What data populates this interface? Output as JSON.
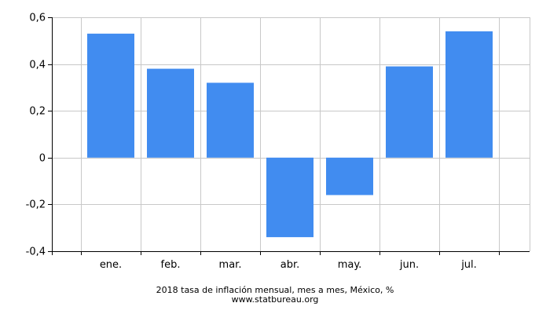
{
  "chart_data": {
    "type": "bar",
    "categories": [
      "ene.",
      "feb.",
      "mar.",
      "abr.",
      "may.",
      "jun.",
      "jul."
    ],
    "values": [
      0.53,
      0.38,
      0.32,
      -0.34,
      -0.16,
      0.39,
      0.54
    ],
    "title": "2018 tasa de inflación mensual, mes a mes, México, %",
    "xlabel": "",
    "ylabel": "",
    "ylim": [
      -0.4,
      0.6
    ],
    "yticks": [
      -0.4,
      -0.2,
      0,
      0.2,
      0.4,
      0.6
    ],
    "ytick_labels": [
      "-0,4",
      "-0,2",
      "0",
      "0,2",
      "0,4",
      "0,6"
    ],
    "grid": true,
    "legend": "none",
    "bar_color": "#418cf0"
  },
  "source": "www.statbureau.org"
}
